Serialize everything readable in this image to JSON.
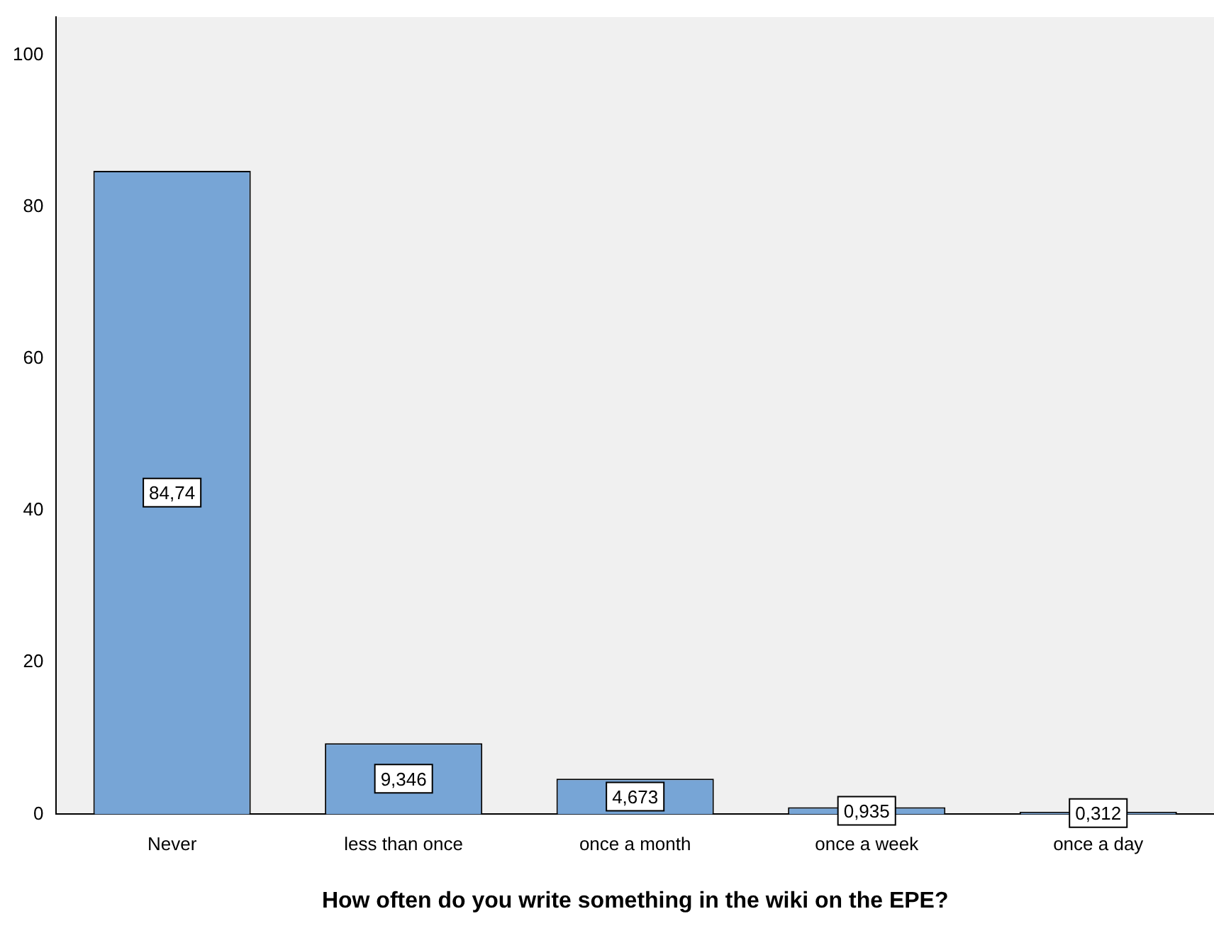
{
  "chart_data": {
    "type": "bar",
    "xlabel": "How often do you write something in the wiki on the EPE?",
    "categories": [
      "Never",
      "less than once",
      "once a month",
      "once a week",
      "once a day"
    ],
    "values": [
      84.74,
      9.346,
      4.673,
      0.935,
      0.312
    ],
    "value_labels": [
      "84,74",
      "9,346",
      "4,673",
      "0,935",
      "0,312"
    ],
    "color": "#77a5d6",
    "ylim": [
      0,
      105
    ],
    "yticks": [
      0,
      20,
      40,
      60,
      80,
      100
    ],
    "grid": false,
    "legend": false
  }
}
